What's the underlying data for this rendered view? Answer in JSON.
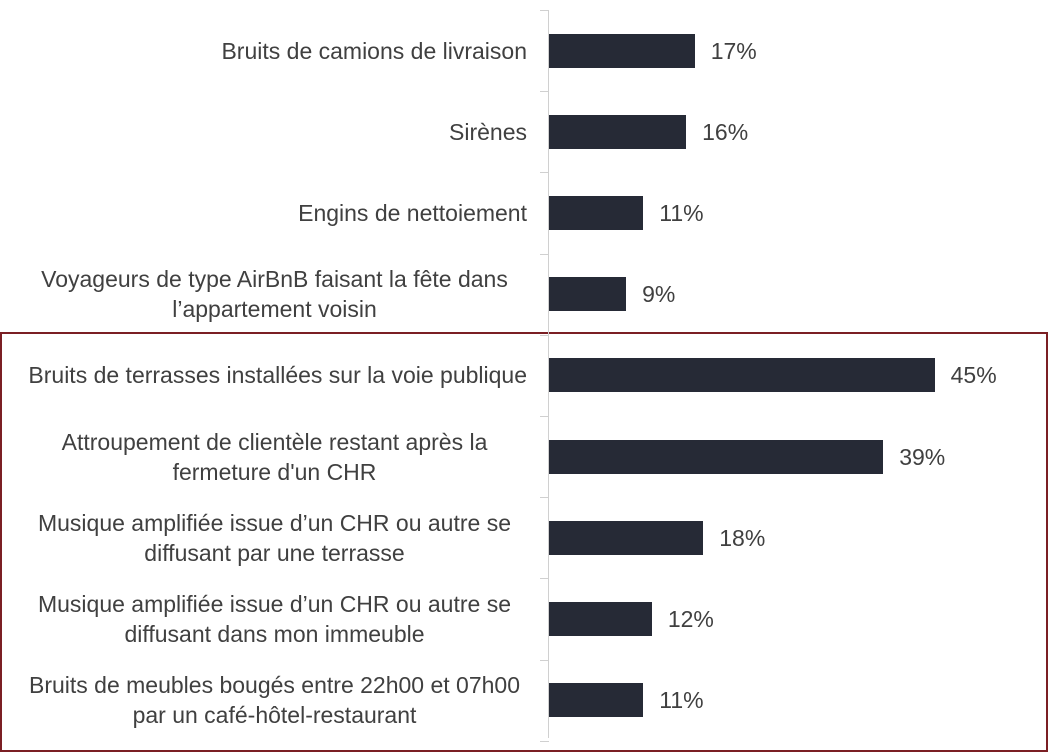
{
  "chart_data": {
    "type": "bar",
    "orientation": "horizontal",
    "color": "#262a36",
    "categories": [
      "Bruits de camions de livraison",
      "Sirènes",
      "Engins de nettoiement",
      "Voyageurs de type AirBnB faisant la fête dans l’appartement voisin",
      "Bruits de terrasses installées sur la voie publique",
      "Attroupement de clientèle restant après la fermeture d'un CHR",
      "Musique amplifiée issue d’un CHR ou autre se diffusant par une terrasse",
      "Musique amplifiée issue d’un CHR ou autre se diffusant dans mon immeuble",
      "Bruits de meubles bougés entre 22h00 et 07h00 par un café-hôtel-restaurant"
    ],
    "values": [
      17,
      16,
      11,
      9,
      45,
      39,
      18,
      12,
      11
    ],
    "value_labels": [
      "17%",
      "16%",
      "11%",
      "9%",
      "45%",
      "39%",
      "18%",
      "12%",
      "11%"
    ]
  }
}
